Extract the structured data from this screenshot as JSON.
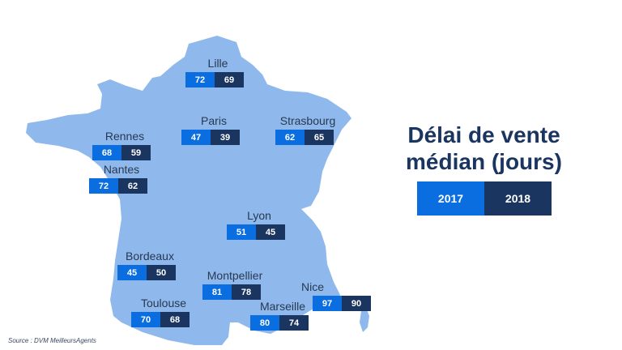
{
  "title": "Délai de vente médian (jours)",
  "legend": {
    "y2017": "2017",
    "y2018": "2018"
  },
  "colors": {
    "y2017": "#0a6ee0",
    "y2018": "#1b3561",
    "land": "#8fb9ec"
  },
  "cities": [
    {
      "name": "Lille",
      "v2017": "72",
      "v2018": "69"
    },
    {
      "name": "Paris",
      "v2017": "47",
      "v2018": "39"
    },
    {
      "name": "Strasbourg",
      "v2017": "62",
      "v2018": "65"
    },
    {
      "name": "Rennes",
      "v2017": "68",
      "v2018": "59"
    },
    {
      "name": "Nantes",
      "v2017": "72",
      "v2018": "62"
    },
    {
      "name": "Lyon",
      "v2017": "51",
      "v2018": "45"
    },
    {
      "name": "Bordeaux",
      "v2017": "45",
      "v2018": "50"
    },
    {
      "name": "Montpellier",
      "v2017": "81",
      "v2018": "78"
    },
    {
      "name": "Nice",
      "v2017": "97",
      "v2018": "90"
    },
    {
      "name": "Marseille",
      "v2017": "80",
      "v2018": "74"
    },
    {
      "name": "Toulouse",
      "v2017": "70",
      "v2018": "68"
    }
  ],
  "source": "Source : DVM MeilleursAgents"
}
